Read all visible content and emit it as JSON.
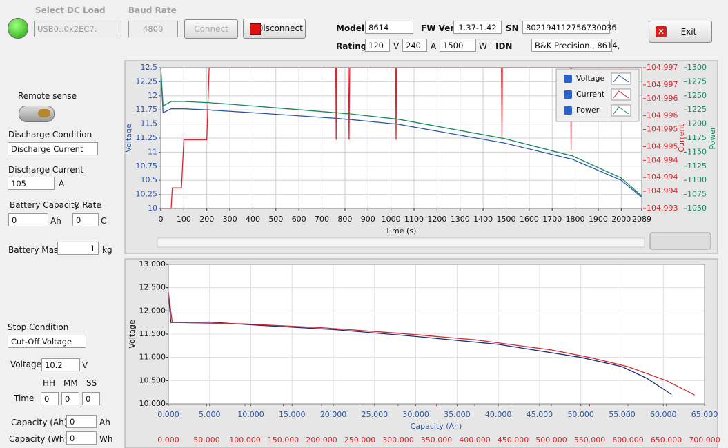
{
  "header": {
    "select_dc_load_label": "Select DC Load",
    "select_dc_load": "USB0::0x2EC7:",
    "baud_rate_label": "Baud Rate",
    "baud_rate": "4800",
    "connect": "Connect",
    "disconnect": "Disconnect",
    "model_label": "Model",
    "model": "8614",
    "fw_label": "FW Ver.",
    "fw": "1.37-1.42",
    "sn_label": "SN",
    "sn": "802194112756730036",
    "rating_label": "Rating",
    "rating_v": "120",
    "unit_v": "V",
    "rating_a": "240",
    "unit_a": "A",
    "rating_w": "1500",
    "unit_w": "W",
    "idn_label": "IDN",
    "idn": "B&K Precision., 8614,",
    "exit": "Exit"
  },
  "settings": {
    "remote_sense": "Remote sense",
    "discharge_condition_label": "Discharge Condition",
    "discharge_condition": "Discharge Current",
    "discharge_current_label": "Discharge Current",
    "discharge_current": "105",
    "discharge_current_unit": "A",
    "battery_capacity_label": "Battery Capacity",
    "c_rate_label": "C Rate",
    "battery_capacity": "0",
    "battery_capacity_unit": "Ah",
    "c_rate": "0",
    "c_rate_unit": "C",
    "battery_mass_label": "Battery Mass",
    "battery_mass": "1",
    "battery_mass_unit": "kg",
    "stop_condition_label": "Stop Condition",
    "stop_condition": "Cut-Off Voltage",
    "voltage_label": "Voltage",
    "voltage": "10.2",
    "voltage_unit": "V",
    "hh": "HH",
    "mm": "MM",
    "ss": "SS",
    "time_label": "Time",
    "time_hh": "0",
    "time_mm": "0",
    "time_ss": "0",
    "capacity_ah_label": "Capacity (Ah)",
    "capacity_ah": "0",
    "capacity_ah_unit": "Ah",
    "capacity_wh_label": "Capacity (Wh)",
    "capacity_wh": "0",
    "capacity_wh_unit": "Wh"
  },
  "chart_data": [
    {
      "type": "line",
      "xlabel": "Time (s)",
      "ylabel": "Voltage",
      "y2label": "Current",
      "y3label": "Power",
      "grid": true,
      "legend": "top-right",
      "x": [
        0,
        10,
        45,
        50,
        90,
        100,
        200,
        210,
        230,
        240,
        400,
        760,
        762,
        764,
        815,
        818,
        821,
        1020,
        1022,
        1024,
        1480,
        1482,
        1484,
        1780,
        1782,
        1784,
        2000,
        2089
      ],
      "xlim": [
        0,
        2089
      ],
      "xticks": [
        0,
        100,
        200,
        300,
        400,
        500,
        600,
        700,
        800,
        900,
        1000,
        1100,
        1200,
        1300,
        1400,
        1500,
        1600,
        1700,
        1800,
        1900,
        2000,
        2089
      ],
      "ylim": [
        10,
        12.5
      ],
      "yticks": [
        10,
        10.25,
        10.5,
        10.75,
        11,
        11.25,
        11.5,
        11.75,
        12,
        12.25,
        12.5
      ],
      "y2lim": [
        104.993,
        104.9971
      ],
      "y2ticks": [
        {
          "value": 104.993,
          "label": "104.993"
        },
        {
          "value": 104.9935,
          "label": "104.994"
        },
        {
          "value": 104.9939,
          "label": "104.994"
        },
        {
          "value": 104.9944,
          "label": "104.994"
        },
        {
          "value": 104.9948,
          "label": "104.995"
        },
        {
          "value": 104.9953,
          "label": "104.995"
        },
        {
          "value": 104.9957,
          "label": "104.996"
        },
        {
          "value": 104.9962,
          "label": "104.996"
        },
        {
          "value": 104.9966,
          "label": "104.997"
        },
        {
          "value": 104.9971,
          "label": "104.997"
        }
      ],
      "y3lim": [
        1050,
        1300
      ],
      "y3ticks": [
        1050,
        1075,
        1100,
        1125,
        1150,
        1175,
        1200,
        1225,
        1250,
        1275,
        1300
      ],
      "series": [
        {
          "name": "Voltage",
          "color": "#2b55a8",
          "values": [
            12.5,
            11.7,
            11.77,
            11.77,
            11.77,
            11.77,
            11.75,
            11.75,
            11.74,
            11.74,
            11.7,
            11.6,
            11.6,
            11.6,
            11.58,
            11.58,
            11.58,
            11.5,
            11.5,
            11.5,
            11.17,
            11.17,
            11.17,
            10.88,
            10.88,
            10.88,
            10.5,
            10.2
          ]
        },
        {
          "name": "Current",
          "color": "#e0242c",
          "axis": "y2",
          "values": [
            104.993,
            104.993,
            104.993,
            104.9936,
            104.9936,
            104.995,
            104.995,
            104.9971,
            104.9971,
            104.9971,
            104.9971,
            104.9971,
            104.995,
            104.9971,
            104.9971,
            104.995,
            104.9971,
            104.9971,
            104.995,
            104.9971,
            104.9971,
            104.995,
            104.9971,
            104.9971,
            104.9947,
            104.9971,
            104.9971,
            104.9971
          ]
        },
        {
          "name": "Power",
          "color": "#13875f",
          "axis": "y3",
          "values": [
            1300,
            1232,
            1240,
            1240,
            1240,
            1240,
            1238,
            1238,
            1237,
            1237,
            1232,
            1220,
            1220,
            1220,
            1218,
            1218,
            1218,
            1209,
            1209,
            1209,
            1175,
            1175,
            1175,
            1144,
            1144,
            1144,
            1104,
            1072
          ]
        }
      ]
    },
    {
      "type": "line",
      "xlabel": "Capacity (Ah)",
      "ylabel": "Voltage",
      "grid": true,
      "xlim": [
        0,
        65
      ],
      "xticks": [
        {
          "value": 0,
          "label": "0.000"
        },
        {
          "value": 5,
          "label": "5.000"
        },
        {
          "value": 10,
          "label": "10.000"
        },
        {
          "value": 15,
          "label": "15.000"
        },
        {
          "value": 20,
          "label": "20.000"
        },
        {
          "value": 25,
          "label": "25.000"
        },
        {
          "value": 30,
          "label": "30.000"
        },
        {
          "value": 35,
          "label": "35.000"
        },
        {
          "value": 40,
          "label": "40.000"
        },
        {
          "value": 45,
          "label": "45.000"
        },
        {
          "value": 50,
          "label": "50.000"
        },
        {
          "value": 55,
          "label": "55.000"
        },
        {
          "value": 60,
          "label": "60.000"
        },
        {
          "value": 65,
          "label": "65.000"
        }
      ],
      "x2lim": [
        0,
        700
      ],
      "x2ticks": [
        {
          "value": 0,
          "label": "0.000"
        },
        {
          "value": 50,
          "label": "50.000"
        },
        {
          "value": 100,
          "label": "100.000"
        },
        {
          "value": 150,
          "label": "150.000"
        },
        {
          "value": 200,
          "label": "200.000"
        },
        {
          "value": 250,
          "label": "250.000"
        },
        {
          "value": 300,
          "label": "300.000"
        },
        {
          "value": 350,
          "label": "350.000"
        },
        {
          "value": 400,
          "label": "400.000"
        },
        {
          "value": 450,
          "label": "450.000"
        },
        {
          "value": 500,
          "label": "500.000"
        },
        {
          "value": 550,
          "label": "550.000"
        },
        {
          "value": 600,
          "label": "600.000"
        },
        {
          "value": 650,
          "label": "650.000"
        },
        {
          "value": 700,
          "label": "700.000"
        }
      ],
      "ylim": [
        10,
        13
      ],
      "yticks": [
        {
          "value": 10,
          "label": "10.000"
        },
        {
          "value": 10.5,
          "label": "10.500"
        },
        {
          "value": 11,
          "label": "11.000"
        },
        {
          "value": 11.5,
          "label": "11.500"
        },
        {
          "value": 12,
          "label": "12.000"
        },
        {
          "value": 12.5,
          "label": "12.500"
        },
        {
          "value": 13,
          "label": "13.000"
        }
      ],
      "series": [
        {
          "color": "#1a2f7a",
          "x": [
            0,
            0.3,
            5,
            10,
            20,
            30,
            40,
            50,
            55,
            58,
            61
          ],
          "values": [
            12.4,
            11.75,
            11.76,
            11.7,
            11.6,
            11.45,
            11.28,
            11.0,
            10.8,
            10.55,
            10.2
          ]
        },
        {
          "color": "#d9262e",
          "axis": "x2",
          "x": [
            0,
            5,
            100,
            200,
            300,
            400,
            500,
            550,
            600,
            650,
            687
          ],
          "values": [
            12.4,
            11.75,
            11.72,
            11.64,
            11.52,
            11.38,
            11.16,
            11.0,
            10.8,
            10.5,
            10.19
          ]
        }
      ]
    }
  ]
}
